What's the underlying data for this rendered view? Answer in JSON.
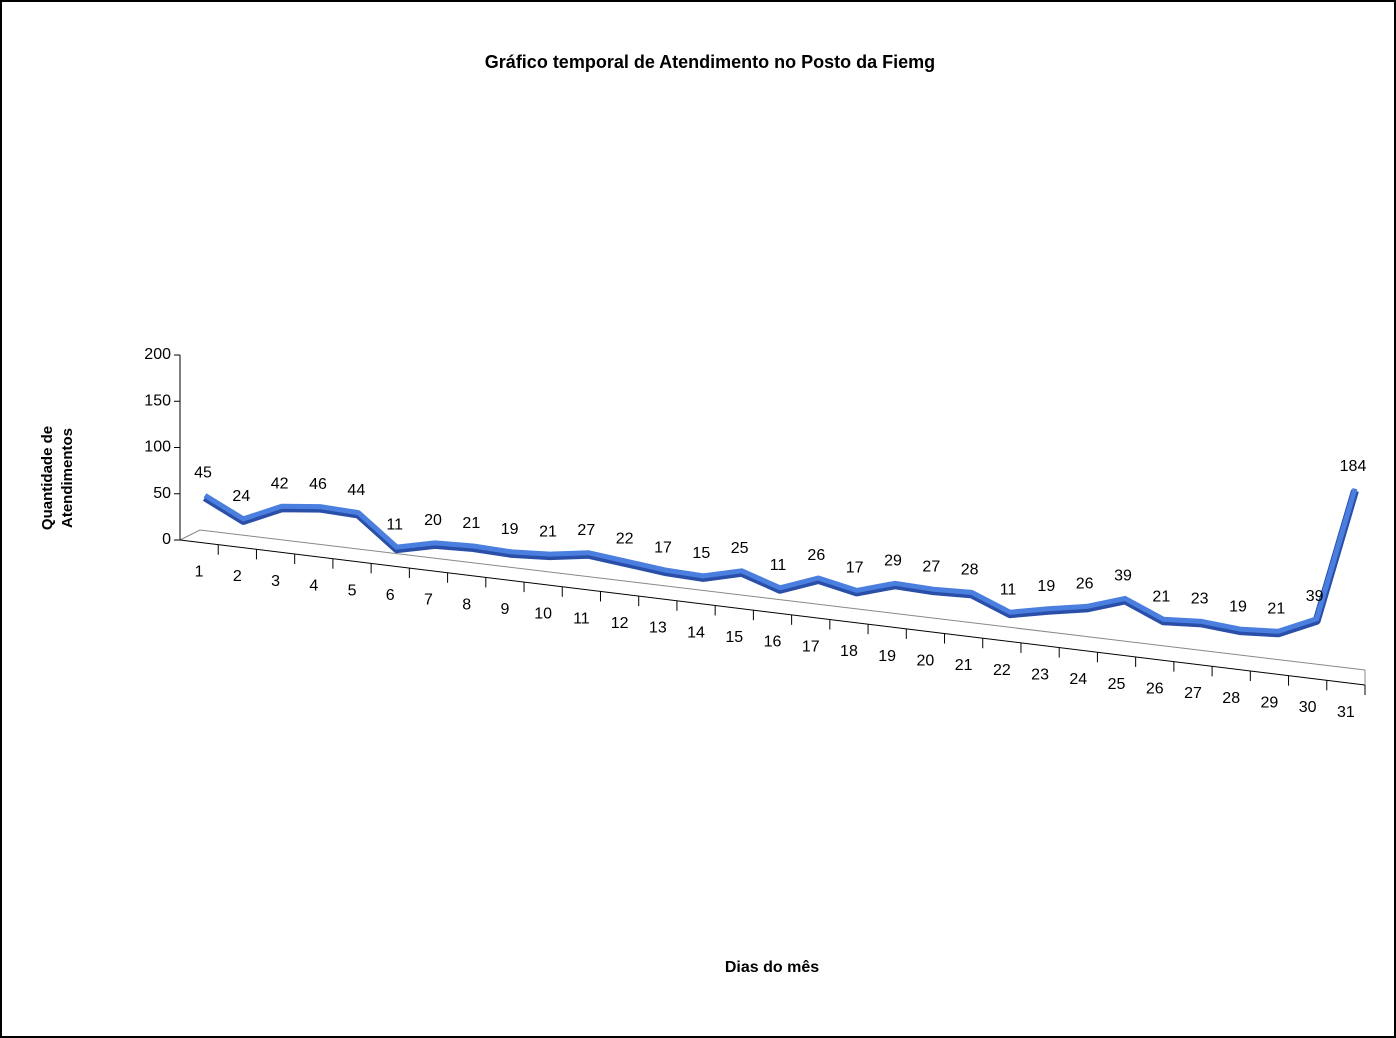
{
  "chart_data": {
    "type": "line3d",
    "title": "Gráfico temporal de Atendimento no Posto da Fiemg",
    "y_label": [
      "Quantidade de",
      "Atendimentos"
    ],
    "x_label": "Dias do mês",
    "categories": [
      "1",
      "2",
      "3",
      "4",
      "5",
      "6",
      "7",
      "8",
      "9",
      "10",
      "11",
      "12",
      "13",
      "14",
      "15",
      "16",
      "17",
      "18",
      "19",
      "20",
      "21",
      "22",
      "23",
      "24",
      "25",
      "26",
      "27",
      "28",
      "29",
      "30",
      "31"
    ],
    "values": [
      45,
      24,
      42,
      46,
      44,
      11,
      20,
      21,
      19,
      21,
      27,
      22,
      17,
      15,
      25,
      11,
      26,
      17,
      29,
      27,
      28,
      11,
      19,
      26,
      39,
      21,
      23,
      19,
      21,
      39,
      184
    ],
    "color": "#4a7fe0",
    "ylim": [
      0,
      200
    ],
    "yticks": [
      0,
      50,
      100,
      150,
      200
    ]
  }
}
